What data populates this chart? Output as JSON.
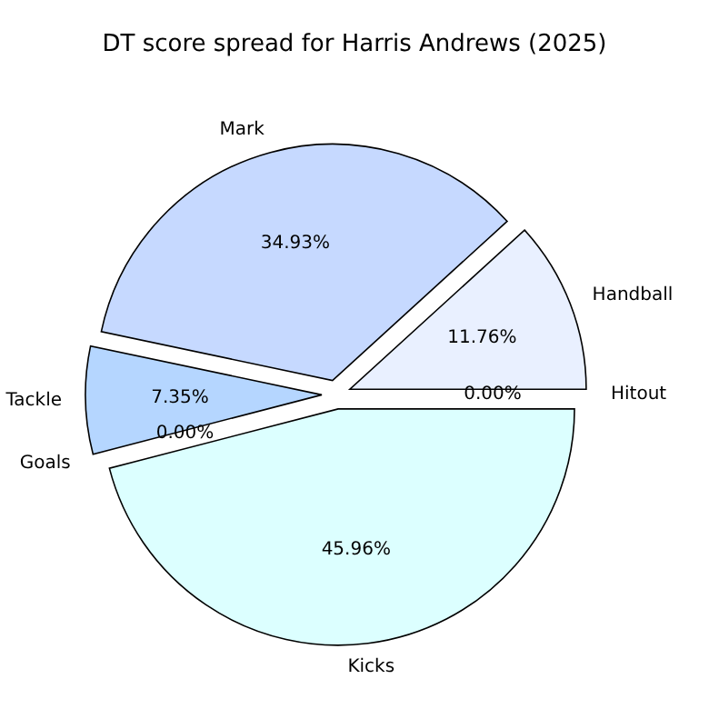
{
  "chart_data": {
    "type": "pie",
    "title": "DT score spread for Harris Andrews (2025)",
    "categories": [
      "Hitout",
      "Handball",
      "Mark",
      "Tackle",
      "Goals",
      "Kicks"
    ],
    "values": [
      0.0,
      11.76,
      34.93,
      7.35,
      0.0,
      45.96
    ],
    "colors": [
      "#f0f4ff",
      "#e9f0ff",
      "#c6d9ff",
      "#b5d6ff",
      "#c8e6ff",
      "#dcffff"
    ],
    "value_labels": [
      "0.00%",
      "11.76%",
      "34.93%",
      "7.35%",
      "0.00%",
      "45.96%"
    ]
  }
}
